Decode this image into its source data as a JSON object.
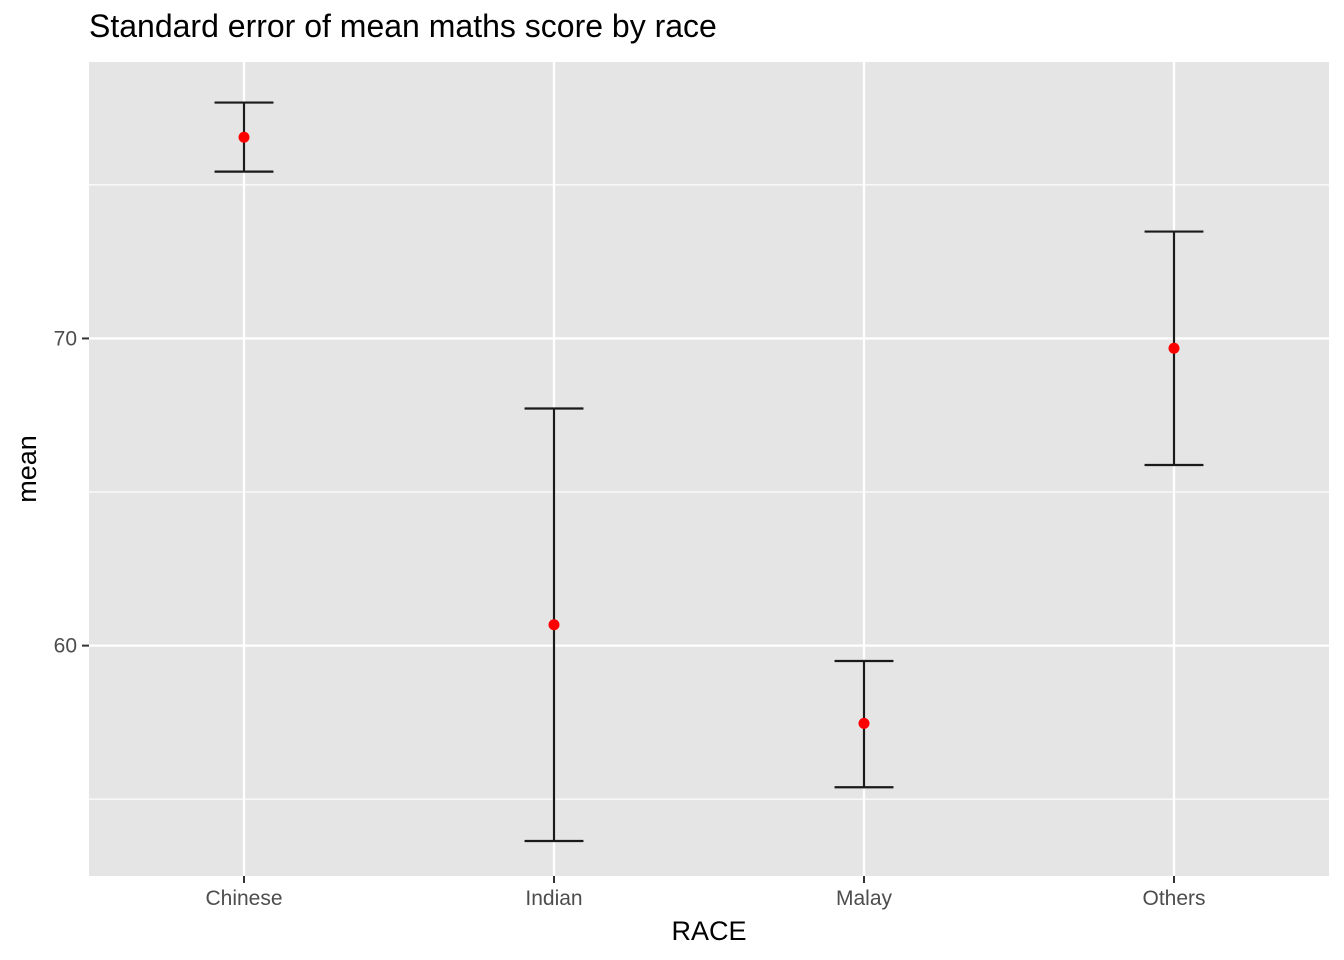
{
  "chart_data": {
    "type": "errorbar",
    "title": "Standard error of mean maths score by race",
    "xlabel": "RACE",
    "ylabel": "mean",
    "categories": [
      "Chinese",
      "Indian",
      "Malay",
      "Others"
    ],
    "series": [
      {
        "mean": [
          76.55,
          60.68,
          57.47,
          69.68
        ],
        "lower": [
          75.43,
          53.64,
          55.39,
          65.88
        ],
        "upper": [
          77.68,
          67.72,
          59.5,
          73.48
        ]
      }
    ],
    "ylim": [
      52.5,
      79.0
    ],
    "y_ticks": [
      60,
      70
    ],
    "y_tick_labels": [
      "60",
      "70"
    ],
    "grid": true,
    "colors": {
      "panel_background": "#e5e5e5",
      "grid": "#ffffff",
      "point": "#ff0000",
      "errorbar": "#1a1a1a",
      "tick_label": "#4d4d4d"
    }
  }
}
